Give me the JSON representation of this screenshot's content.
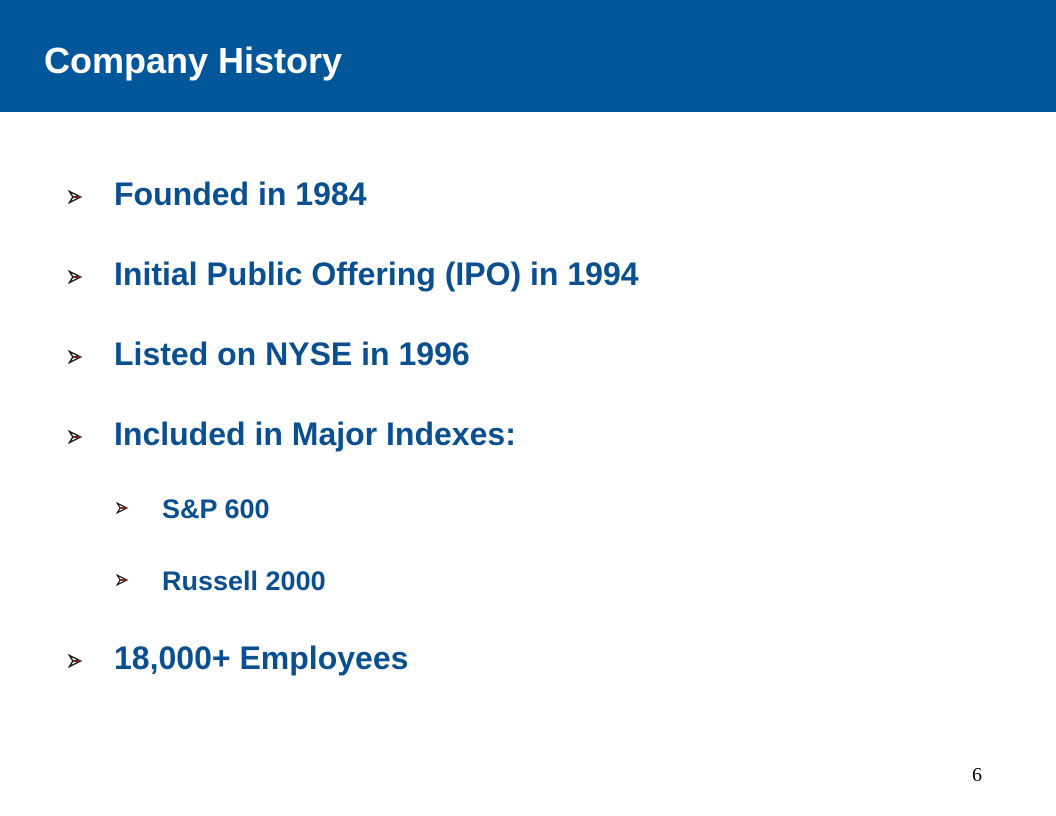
{
  "header": {
    "title": "Company History"
  },
  "bullets": [
    {
      "text": "Founded in 1984"
    },
    {
      "text": "Initial Public Offering (IPO) in 1994"
    },
    {
      "text": "Listed on NYSE in 1996"
    },
    {
      "text": "Included in Major Indexes:",
      "sub": [
        "S&P 600",
        "Russell 2000"
      ]
    },
    {
      "text": "18,000+ Employees"
    }
  ],
  "page_number": "6"
}
